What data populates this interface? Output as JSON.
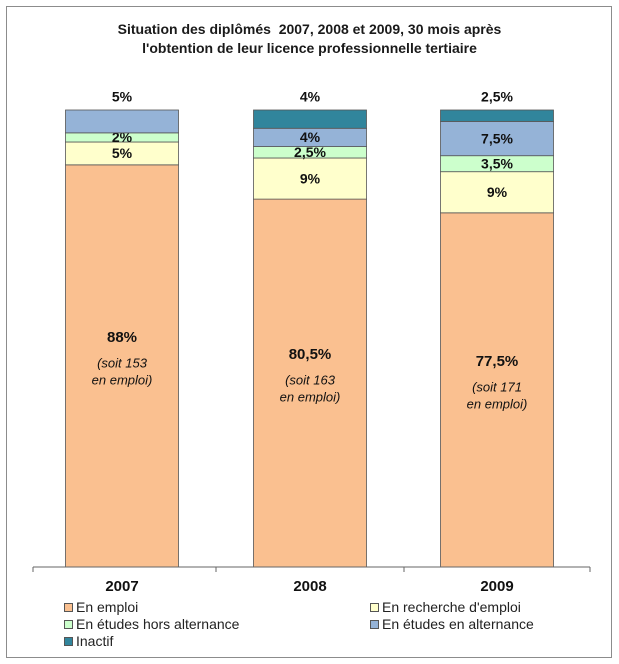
{
  "chart_data": {
    "type": "bar",
    "stacked": true,
    "title": [
      "Situation des diplômés  2007, 2008 et 2009, 30 mois après",
      "l'obtention de leur licence professionnelle tertiaire"
    ],
    "categories": [
      "2007",
      "2008",
      "2009"
    ],
    "ylim": [
      0,
      100
    ],
    "series": [
      {
        "name": "En emploi",
        "color": "#FAC090",
        "values": [
          88,
          80.5,
          77.5
        ],
        "labels": [
          "88%",
          "80,5%",
          "77,5%"
        ],
        "sublabels": [
          [
            "(soit 153",
            "en emploi)"
          ],
          [
            "(soit 163",
            "en emploi)"
          ],
          [
            "(soit 171",
            "en emploi)"
          ]
        ]
      },
      {
        "name": "En recherche d'emploi",
        "color": "#FFFFCC",
        "values": [
          5,
          9,
          9
        ],
        "labels": [
          "5%",
          "9%",
          "9%"
        ]
      },
      {
        "name": "En études hors alternance",
        "color": "#CCFFCC",
        "values": [
          2,
          2.5,
          3.5
        ],
        "labels": [
          "2%",
          "2,5%",
          "3,5%"
        ]
      },
      {
        "name": "En études en alternance",
        "color": "#95B3D7",
        "values": [
          5,
          4,
          7.5
        ],
        "labels": [
          "5%",
          "4%",
          "7,5%"
        ]
      },
      {
        "name": "Inactif",
        "color": "#31859C",
        "values": [
          0,
          4,
          2.5
        ],
        "labels": [
          "",
          "4%",
          "2,5%"
        ]
      }
    ],
    "top_labels": [
      "5%",
      "4%",
      "2,5%"
    ],
    "legend_position": "bottom",
    "grid": false
  }
}
